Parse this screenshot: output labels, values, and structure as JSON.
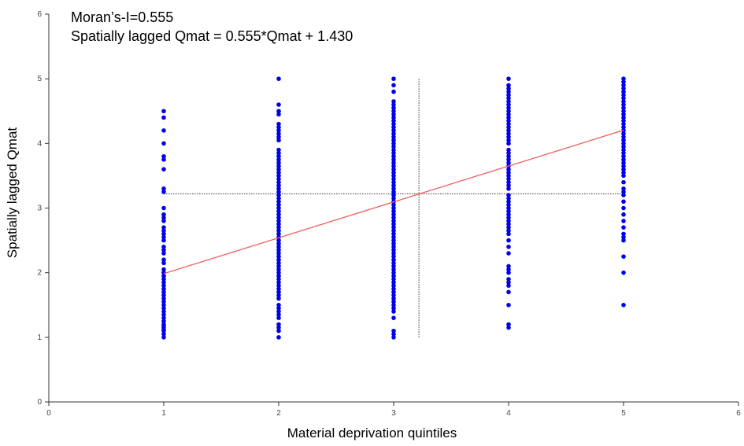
{
  "chart_data": {
    "type": "scatter",
    "title": "",
    "annotations": [
      "Moran’s-I=0.555",
      "Spatially lagged Qmat = 0.555*Qmat + 1.430"
    ],
    "xlabel": "Material deprivation quintiles",
    "ylabel": "Spatially lagged Qmat",
    "xlim": [
      0,
      6
    ],
    "ylim": [
      0,
      6
    ],
    "xticks": [
      "0",
      "1",
      "2",
      "3",
      "4",
      "5",
      "6"
    ],
    "yticks": [
      "0",
      "1",
      "2",
      "3",
      "4",
      "5",
      "6"
    ],
    "grid": false,
    "legend": "none",
    "point_color": "#0000ee",
    "regression_color": "#f06060",
    "regression": {
      "slope": 0.555,
      "intercept": 1.43,
      "x_range": [
        1,
        5
      ]
    },
    "mean_x": 3.22,
    "mean_y": 3.22,
    "series": [
      {
        "x": 1,
        "y": [
          1.0,
          1.05,
          1.1,
          1.12,
          1.15,
          1.18,
          1.2,
          1.25,
          1.3,
          1.35,
          1.4,
          1.45,
          1.5,
          1.55,
          1.6,
          1.65,
          1.7,
          1.75,
          1.8,
          1.85,
          1.9,
          1.95,
          2.0,
          2.05,
          2.15,
          2.2,
          2.3,
          2.35,
          2.4,
          2.5,
          2.55,
          2.6,
          2.65,
          2.7,
          2.8,
          2.85,
          2.9,
          3.0,
          3.25,
          3.3,
          3.6,
          3.75,
          3.8,
          4.0,
          4.2,
          4.4,
          4.5
        ]
      },
      {
        "x": 2,
        "y": [
          1.0,
          1.1,
          1.15,
          1.2,
          1.3,
          1.35,
          1.4,
          1.45,
          1.5,
          1.6,
          1.65,
          1.7,
          1.75,
          1.8,
          1.85,
          1.9,
          1.95,
          2.0,
          2.05,
          2.1,
          2.15,
          2.2,
          2.25,
          2.3,
          2.35,
          2.4,
          2.45,
          2.5,
          2.55,
          2.6,
          2.65,
          2.7,
          2.75,
          2.8,
          2.85,
          2.9,
          2.95,
          3.0,
          3.05,
          3.1,
          3.15,
          3.2,
          3.25,
          3.3,
          3.35,
          3.4,
          3.45,
          3.5,
          3.55,
          3.6,
          3.65,
          3.7,
          3.75,
          3.8,
          3.85,
          3.9,
          4.05,
          4.1,
          4.15,
          4.2,
          4.25,
          4.3,
          4.45,
          4.5,
          4.6,
          5.0
        ]
      },
      {
        "x": 3,
        "y": [
          1.0,
          1.05,
          1.1,
          1.3,
          1.4,
          1.45,
          1.5,
          1.55,
          1.6,
          1.65,
          1.7,
          1.75,
          1.8,
          1.85,
          1.9,
          1.95,
          2.0,
          2.05,
          2.1,
          2.15,
          2.2,
          2.25,
          2.3,
          2.35,
          2.4,
          2.45,
          2.5,
          2.55,
          2.6,
          2.65,
          2.7,
          2.75,
          2.8,
          2.85,
          2.9,
          2.95,
          3.0,
          3.05,
          3.1,
          3.15,
          3.2,
          3.25,
          3.3,
          3.35,
          3.4,
          3.45,
          3.5,
          3.55,
          3.6,
          3.65,
          3.7,
          3.75,
          3.8,
          3.85,
          3.9,
          3.95,
          4.0,
          4.05,
          4.1,
          4.15,
          4.2,
          4.25,
          4.3,
          4.35,
          4.4,
          4.45,
          4.5,
          4.55,
          4.6,
          4.65,
          4.8,
          4.9,
          5.0
        ]
      },
      {
        "x": 4,
        "y": [
          1.15,
          1.2,
          1.5,
          1.7,
          1.8,
          1.85,
          1.9,
          2.0,
          2.05,
          2.1,
          2.3,
          2.4,
          2.5,
          2.6,
          2.65,
          2.7,
          2.75,
          2.8,
          2.85,
          2.9,
          2.95,
          3.0,
          3.05,
          3.1,
          3.15,
          3.2,
          3.3,
          3.35,
          3.4,
          3.45,
          3.5,
          3.55,
          3.6,
          3.65,
          3.7,
          3.75,
          3.8,
          3.85,
          3.9,
          4.0,
          4.05,
          4.1,
          4.15,
          4.2,
          4.25,
          4.3,
          4.35,
          4.4,
          4.45,
          4.5,
          4.55,
          4.6,
          4.65,
          4.7,
          4.75,
          4.8,
          4.85,
          4.9,
          5.0
        ]
      },
      {
        "x": 5,
        "y": [
          1.5,
          2.0,
          2.25,
          2.5,
          2.55,
          2.6,
          2.7,
          2.8,
          2.9,
          3.0,
          3.1,
          3.2,
          3.25,
          3.3,
          3.4,
          3.5,
          3.55,
          3.6,
          3.65,
          3.7,
          3.75,
          3.8,
          3.85,
          3.9,
          3.95,
          4.0,
          4.05,
          4.1,
          4.15,
          4.2,
          4.25,
          4.3,
          4.35,
          4.4,
          4.45,
          4.5,
          4.55,
          4.6,
          4.65,
          4.7,
          4.75,
          4.8,
          4.85,
          4.9,
          4.95,
          5.0
        ]
      }
    ]
  }
}
